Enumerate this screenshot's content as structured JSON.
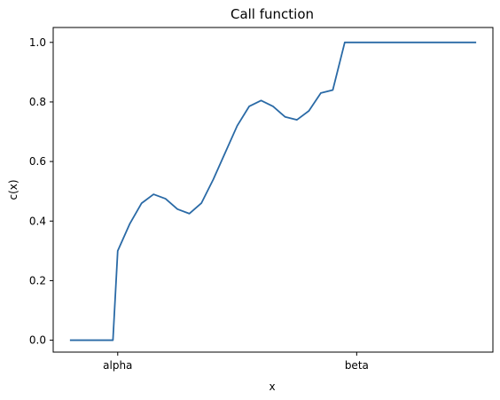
{
  "chart_data": {
    "type": "line",
    "title": "Call function",
    "xlabel": "x",
    "ylabel": "c(x)",
    "ylim": [
      -0.04,
      1.05
    ],
    "grid": false,
    "x_ticks": [
      "alpha",
      "beta"
    ],
    "y_ticks": [
      "0.0",
      "0.2",
      "0.4",
      "0.6",
      "0.8",
      "1.0"
    ],
    "series": [
      {
        "color": "#2a6aa6",
        "x": [
          -0.2,
          -0.05,
          -0.02,
          0.0,
          0.05,
          0.1,
          0.15,
          0.2,
          0.25,
          0.3,
          0.35,
          0.4,
          0.45,
          0.5,
          0.55,
          0.6,
          0.65,
          0.7,
          0.75,
          0.8,
          0.85,
          0.9,
          0.95,
          0.98,
          1.0,
          1.05,
          1.1,
          1.2,
          1.3,
          1.4,
          1.5
        ],
        "y": [
          0.0,
          0.0,
          0.0,
          0.3,
          0.39,
          0.46,
          0.49,
          0.475,
          0.44,
          0.425,
          0.46,
          0.54,
          0.63,
          0.72,
          0.785,
          0.805,
          0.785,
          0.75,
          0.74,
          0.77,
          0.83,
          0.84,
          1.0,
          1.0,
          1.0,
          1.0,
          1.0,
          1.0,
          1.0,
          1.0,
          1.0
        ]
      }
    ]
  }
}
